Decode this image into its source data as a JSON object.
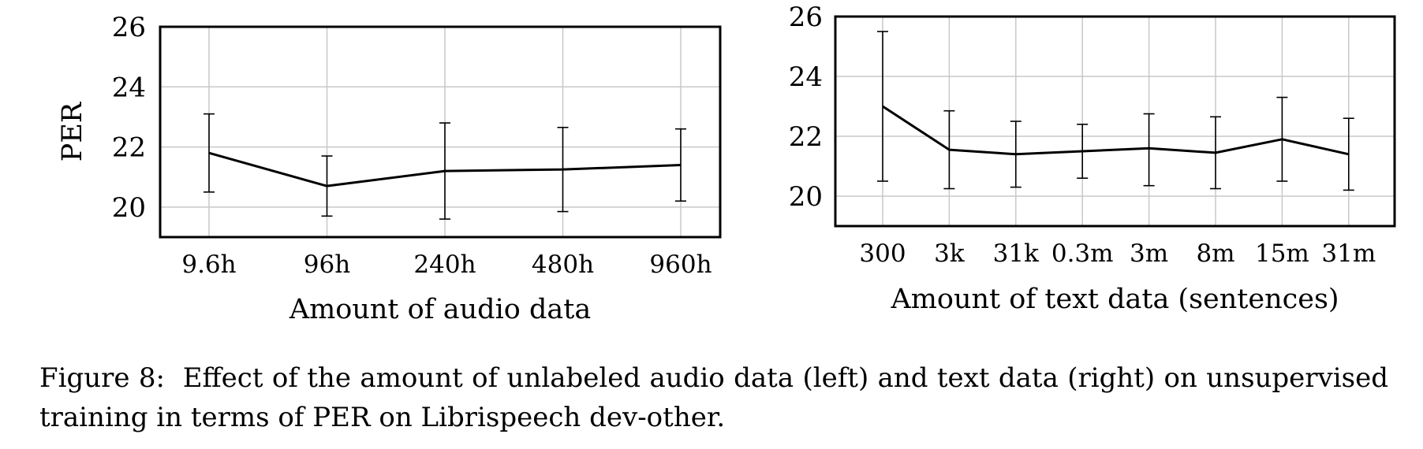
{
  "chart_data": [
    {
      "type": "line",
      "categories": [
        "9.6h",
        "96h",
        "240h",
        "480h",
        "960h"
      ],
      "values": [
        21.8,
        20.7,
        21.2,
        21.25,
        21.4
      ],
      "error_low": [
        20.5,
        19.7,
        19.6,
        19.85,
        20.2
      ],
      "error_high": [
        23.1,
        21.7,
        22.8,
        22.65,
        22.6
      ],
      "xlabel": "Amount of audio data",
      "ylabel": "PER",
      "ylim": [
        19,
        26
      ],
      "yticks": [
        20,
        22,
        24,
        26
      ],
      "grid": true
    },
    {
      "type": "line",
      "categories": [
        "300",
        "3k",
        "31k",
        "0.3m",
        "3m",
        "8m",
        "15m",
        "31m"
      ],
      "values": [
        23.0,
        21.55,
        21.4,
        21.5,
        21.6,
        21.45,
        21.9,
        21.4
      ],
      "error_low": [
        20.5,
        20.25,
        20.3,
        20.6,
        20.35,
        20.25,
        20.5,
        20.2
      ],
      "error_high": [
        25.5,
        22.85,
        22.5,
        22.4,
        22.75,
        22.65,
        23.3,
        22.6
      ],
      "xlabel": "Amount of text data (sentences)",
      "ylabel": "",
      "ylim": [
        19,
        26
      ],
      "yticks": [
        20,
        22,
        24,
        26
      ],
      "grid": true
    }
  ],
  "caption": {
    "label": "Figure 8:",
    "text": "Effect of the amount of unlabeled audio data (left) and text data (right) on unsupervised training in terms of PER on Librispeech dev-other."
  },
  "colors": {
    "line": "#000000",
    "grid": "#c8c8c8",
    "frame": "#000000"
  }
}
